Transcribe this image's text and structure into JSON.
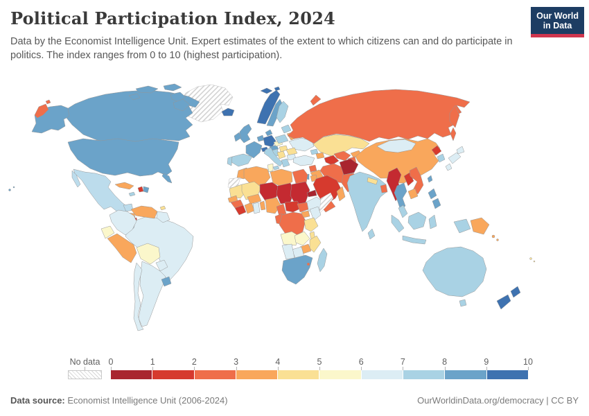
{
  "header": {
    "title": "Political Participation Index, 2024",
    "subtitle": "Data by the Economist Intelligence Unit. Expert estimates of the extent to which citizens can and do participate in politics. The index ranges from 0 to 10 (highest participation).",
    "logo": {
      "line1": "Our World",
      "line2": "in Data"
    }
  },
  "theme": {
    "logo_bg": "#1d3d63",
    "logo_accent": "#d0364e",
    "title_color": "#3a3a3a",
    "border_color": "#969696"
  },
  "legend": {
    "no_data_label": "No data",
    "ticks": [
      "0",
      "1",
      "2",
      "3",
      "4",
      "5",
      "6",
      "7",
      "8",
      "9",
      "10"
    ],
    "bin_colors": [
      "#a9252f",
      "#d63a2e",
      "#ef6e4a",
      "#f9a75c",
      "#fae094",
      "#fbf7cb",
      "#dcedf4",
      "#a9d2e4",
      "#6ba3c9",
      "#3e72b0"
    ]
  },
  "footer": {
    "source_label": "Data source:",
    "source_value": " Economist Intelligence Unit (2006-2024)",
    "credit": "OurWorldinData.org/democracy | CC BY"
  },
  "chart_data": {
    "type": "heatmap",
    "subtype": "world-choropleth",
    "title": "Political Participation Index, 2024",
    "value_range": [
      0,
      10
    ],
    "legend_position": "bottom",
    "bins": [
      {
        "range": [
          0,
          1
        ],
        "color": "#a9252f"
      },
      {
        "range": [
          1,
          2
        ],
        "color": "#d63a2e"
      },
      {
        "range": [
          2,
          3
        ],
        "color": "#ef6e4a"
      },
      {
        "range": [
          3,
          4
        ],
        "color": "#f9a75c"
      },
      {
        "range": [
          4,
          5
        ],
        "color": "#fae094"
      },
      {
        "range": [
          5,
          6
        ],
        "color": "#fbf7cb"
      },
      {
        "range": [
          6,
          7
        ],
        "color": "#dcedf4"
      },
      {
        "range": [
          7,
          8
        ],
        "color": "#a9d2e4"
      },
      {
        "range": [
          8,
          9
        ],
        "color": "#6ba3c9"
      },
      {
        "range": [
          9,
          10
        ],
        "color": "#3e72b0"
      }
    ],
    "regions": [
      {
        "id": "greenland",
        "name": "Greenland",
        "value": null,
        "color": "nodata"
      },
      {
        "id": "iceland",
        "name": "Iceland",
        "value": 9.5,
        "color": "#3e72b0"
      },
      {
        "id": "norway",
        "name": "Norway",
        "value": 9.5,
        "color": "#3e72b0"
      },
      {
        "id": "sweden",
        "name": "Sweden",
        "value": 8.5,
        "color": "#6ba3c9"
      },
      {
        "id": "finland",
        "name": "Finland",
        "value": 7.5,
        "color": "#a9d2e4"
      },
      {
        "id": "denmark",
        "name": "Denmark",
        "value": 8.5,
        "color": "#6ba3c9"
      },
      {
        "id": "united_kingdom",
        "name": "United Kingdom",
        "value": 8.5,
        "color": "#6ba3c9"
      },
      {
        "id": "ireland",
        "name": "Ireland",
        "value": 8.5,
        "color": "#6ba3c9"
      },
      {
        "id": "netherlands",
        "name": "Netherlands/Belgium",
        "value": 8.5,
        "color": "#6ba3c9"
      },
      {
        "id": "germany",
        "name": "Germany",
        "value": 9.5,
        "color": "#3e72b0"
      },
      {
        "id": "france",
        "name": "France",
        "value": 8.5,
        "color": "#6ba3c9"
      },
      {
        "id": "switzerland",
        "name": "Switzerland",
        "value": 9.5,
        "color": "#3e72b0"
      },
      {
        "id": "austria",
        "name": "Austria",
        "value": 8.5,
        "color": "#6ba3c9"
      },
      {
        "id": "czechia",
        "name": "Czechia",
        "value": 5.5,
        "color": "#fbf7cb"
      },
      {
        "id": "poland",
        "name": "Poland",
        "value": 7.5,
        "color": "#a9d2e4"
      },
      {
        "id": "baltics",
        "name": "Baltic states",
        "value": 7.5,
        "color": "#a9d2e4"
      },
      {
        "id": "belarus",
        "name": "Belarus",
        "value": 3.5,
        "color": "#f9a75c"
      },
      {
        "id": "ukraine",
        "name": "Ukraine",
        "value": 6.5,
        "color": "#dcedf4"
      },
      {
        "id": "hungary",
        "name": "Hungary",
        "value": 4.5,
        "color": "#fae094"
      },
      {
        "id": "romania",
        "name": "Romania",
        "value": 4.5,
        "color": "#fae094"
      },
      {
        "id": "serbia",
        "name": "Serbia",
        "value": 4.5,
        "color": "#fae094"
      },
      {
        "id": "croatia",
        "name": "Croatia/Bosnia",
        "value": 7.5,
        "color": "#a9d2e4"
      },
      {
        "id": "bulgaria",
        "name": "Bulgaria",
        "value": 6.5,
        "color": "#dcedf4"
      },
      {
        "id": "greece",
        "name": "Greece",
        "value": 7.5,
        "color": "#a9d2e4"
      },
      {
        "id": "italy",
        "name": "Italy",
        "value": 7.5,
        "color": "#a9d2e4"
      },
      {
        "id": "spain",
        "name": "Spain",
        "value": 7.5,
        "color": "#a9d2e4"
      },
      {
        "id": "portugal",
        "name": "Portugal",
        "value": 7.5,
        "color": "#a9d2e4"
      },
      {
        "id": "russia",
        "name": "Russia",
        "value": 2.5,
        "color": "#ef6e4a"
      },
      {
        "id": "kazakhstan",
        "name": "Kazakhstan",
        "value": 4.5,
        "color": "#fae094"
      },
      {
        "id": "uzbekistan",
        "name": "Uzbekistan",
        "value": 2.5,
        "color": "#ef6e4a"
      },
      {
        "id": "turkmenistan",
        "name": "Turkmenistan",
        "value": 1.5,
        "color": "#d63a2e"
      },
      {
        "id": "kyrgyzstan",
        "name": "Kyrgyzstan",
        "value": 3.5,
        "color": "#f9a75c"
      },
      {
        "id": "tajikistan",
        "name": "Tajikistan",
        "value": 2.5,
        "color": "#ef6e4a"
      },
      {
        "id": "georgia",
        "name": "Georgia",
        "value": 7.5,
        "color": "#a9d2e4"
      },
      {
        "id": "azerbaijan",
        "name": "Azerbaijan",
        "value": 3.5,
        "color": "#f9a75c"
      },
      {
        "id": "turkey",
        "name": "Turkey",
        "value": 6.5,
        "color": "#dcedf4"
      },
      {
        "id": "syria",
        "name": "Syria",
        "value": 2.5,
        "color": "#ef6e4a"
      },
      {
        "id": "iraq",
        "name": "Iraq",
        "value": 3.5,
        "color": "#f9a75c"
      },
      {
        "id": "israel",
        "name": "Israel",
        "value": 8.5,
        "color": "#6ba3c9"
      },
      {
        "id": "jordan",
        "name": "Jordan",
        "value": 3.5,
        "color": "#f9a75c"
      },
      {
        "id": "saudi_arabia",
        "name": "Saudi Arabia",
        "value": 1.5,
        "color": "#d63a2e"
      },
      {
        "id": "yemen",
        "name": "Yemen",
        "value": 2.5,
        "color": "#ef6e4a"
      },
      {
        "id": "oman",
        "name": "Oman",
        "value": 3.5,
        "color": "#f9a75c"
      },
      {
        "id": "iran",
        "name": "Iran",
        "value": 2.5,
        "color": "#ef6e4a"
      },
      {
        "id": "afghanistan",
        "name": "Afghanistan",
        "value": 0.5,
        "color": "#a9252f"
      },
      {
        "id": "pakistan",
        "name": "Pakistan",
        "value": 2.5,
        "color": "#ef6e4a"
      },
      {
        "id": "india",
        "name": "India",
        "value": 7.5,
        "color": "#a9d2e4"
      },
      {
        "id": "nepal",
        "name": "Nepal",
        "value": 4.5,
        "color": "#fae094"
      },
      {
        "id": "bangladesh",
        "name": "Bangladesh",
        "value": 2.5,
        "color": "#ef6e4a"
      },
      {
        "id": "sri_lanka",
        "name": "Sri Lanka",
        "value": 7.5,
        "color": "#a9d2e4"
      },
      {
        "id": "china",
        "name": "China",
        "value": 3.5,
        "color": "#f9a75c"
      },
      {
        "id": "mongolia",
        "name": "Mongolia",
        "value": 6.5,
        "color": "#dcedf4"
      },
      {
        "id": "north_korea",
        "name": "North Korea",
        "value": 1.5,
        "color": "#d63a2e"
      },
      {
        "id": "south_korea",
        "name": "South Korea",
        "value": 7.5,
        "color": "#a9d2e4"
      },
      {
        "id": "japan",
        "name": "Japan",
        "value": 6.5,
        "color": "#dcedf4"
      },
      {
        "id": "taiwan",
        "name": "Taiwan",
        "value": 8.5,
        "color": "#6ba3c9"
      },
      {
        "id": "myanmar",
        "name": "Myanmar",
        "value": 1,
        "color": "#c42a31"
      },
      {
        "id": "thailand",
        "name": "Thailand",
        "value": 8.5,
        "color": "#6ba3c9"
      },
      {
        "id": "laos",
        "name": "Laos",
        "value": 1.5,
        "color": "#d63a2e"
      },
      {
        "id": "vietnam",
        "name": "Vietnam",
        "value": 2.5,
        "color": "#ef6e4a"
      },
      {
        "id": "cambodia",
        "name": "Cambodia",
        "value": 3.5,
        "color": "#f9a75c"
      },
      {
        "id": "malaysia",
        "name": "Malaysia",
        "value": 7.5,
        "color": "#a9d2e4"
      },
      {
        "id": "indonesia",
        "name": "Indonesia",
        "value": 7.5,
        "color": "#a9d2e4"
      },
      {
        "id": "philippines",
        "name": "Philippines",
        "value": 8.5,
        "color": "#6ba3c9"
      },
      {
        "id": "papua_new_guinea",
        "name": "Papua New Guinea",
        "value": 3.5,
        "color": "#f9a75c"
      },
      {
        "id": "solomon_islands",
        "name": "Solomon Islands",
        "value": 3.5,
        "color": "#f9a75c"
      },
      {
        "id": "fiji",
        "name": "Fiji",
        "value": 4.5,
        "color": "#fae094"
      },
      {
        "id": "australia",
        "name": "Australia",
        "value": 7.5,
        "color": "#a9d2e4"
      },
      {
        "id": "new_zealand",
        "name": "New Zealand",
        "value": 9.5,
        "color": "#3e72b0"
      },
      {
        "id": "canada",
        "name": "Canada",
        "value": 8.5,
        "color": "#6ba3c9"
      },
      {
        "id": "usa",
        "name": "United States",
        "value": 8.5,
        "color": "#6ba3c9"
      },
      {
        "id": "mexico",
        "name": "Mexico",
        "value": 7,
        "color": "#bcdcec"
      },
      {
        "id": "guatemala",
        "name": "Guatemala",
        "value": 4.5,
        "color": "#fae094"
      },
      {
        "id": "honduras",
        "name": "Honduras",
        "value": 3.5,
        "color": "#f9a75c"
      },
      {
        "id": "nicaragua",
        "name": "Nicaragua",
        "value": 1.5,
        "color": "#d63a2e"
      },
      {
        "id": "costa_rica",
        "name": "Costa Rica",
        "value": 7.5,
        "color": "#a9d2e4"
      },
      {
        "id": "panama",
        "name": "Panama",
        "value": 7.5,
        "color": "#a9d2e4"
      },
      {
        "id": "cuba",
        "name": "Cuba",
        "value": 3.5,
        "color": "#f9a75c"
      },
      {
        "id": "jamaica",
        "name": "Jamaica",
        "value": 7.5,
        "color": "#a9d2e4"
      },
      {
        "id": "haiti",
        "name": "Haiti",
        "value": 1.5,
        "color": "#d63a2e"
      },
      {
        "id": "dominican_republic",
        "name": "Dominican Republic",
        "value": 8.5,
        "color": "#6ba3c9"
      },
      {
        "id": "trinidad",
        "name": "Trinidad and Tobago",
        "value": 4.5,
        "color": "#fae094"
      },
      {
        "id": "venezuela",
        "name": "Venezuela",
        "value": 3.5,
        "color": "#f9a75c"
      },
      {
        "id": "guyanas",
        "name": "Guyana/Suriname",
        "value": 6.5,
        "color": "#dcedf4"
      },
      {
        "id": "colombia",
        "name": "Colombia",
        "value": 6.5,
        "color": "#dcedf4"
      },
      {
        "id": "ecuador",
        "name": "Ecuador",
        "value": 5.5,
        "color": "#fbf7cb"
      },
      {
        "id": "peru",
        "name": "Peru",
        "value": 3.5,
        "color": "#f9a75c"
      },
      {
        "id": "bolivia",
        "name": "Bolivia",
        "value": 5.5,
        "color": "#fbf7cb"
      },
      {
        "id": "brazil",
        "name": "Brazil",
        "value": 6.5,
        "color": "#dcedf4"
      },
      {
        "id": "paraguay",
        "name": "Paraguay",
        "value": 6.5,
        "color": "#dcedf4"
      },
      {
        "id": "uruguay",
        "name": "Uruguay",
        "value": 8.5,
        "color": "#6ba3c9"
      },
      {
        "id": "argentina",
        "name": "Argentina",
        "value": 6.5,
        "color": "#dcedf4"
      },
      {
        "id": "chile",
        "name": "Chile",
        "value": 6.5,
        "color": "#dcedf4"
      },
      {
        "id": "morocco",
        "name": "Morocco",
        "value": 3.5,
        "color": "#f9a75c"
      },
      {
        "id": "western_sahara",
        "name": "Western Sahara",
        "value": null,
        "color": "nodata"
      },
      {
        "id": "algeria",
        "name": "Algeria",
        "value": 3.5,
        "color": "#f9a75c"
      },
      {
        "id": "tunisia",
        "name": "Tunisia",
        "value": 5.5,
        "color": "#fbf7cb"
      },
      {
        "id": "libya",
        "name": "Libya",
        "value": 3.5,
        "color": "#f9a75c"
      },
      {
        "id": "egypt",
        "name": "Egypt",
        "value": 2.5,
        "color": "#ef6e4a"
      },
      {
        "id": "mauritania",
        "name": "Mauritania",
        "value": 4.5,
        "color": "#fae094"
      },
      {
        "id": "mali",
        "name": "Mali",
        "value": 4.5,
        "color": "#fae094"
      },
      {
        "id": "senegal",
        "name": "Senegal",
        "value": 3.5,
        "color": "#f9a75c"
      },
      {
        "id": "guinea",
        "name": "Guinea",
        "value": 2.5,
        "color": "#ef6e4a"
      },
      {
        "id": "sierra_leone",
        "name": "Sierra Leone",
        "value": 1.5,
        "color": "#d63a2e"
      },
      {
        "id": "ivory_coast",
        "name": "Cote d'Ivoire",
        "value": 3.5,
        "color": "#f9a75c"
      },
      {
        "id": "ghana",
        "name": "Ghana",
        "value": 6.5,
        "color": "#dcedf4"
      },
      {
        "id": "burkina_faso",
        "name": "Burkina Faso",
        "value": 3.5,
        "color": "#f9a75c"
      },
      {
        "id": "togo_benin",
        "name": "Togo/Benin",
        "value": 3.5,
        "color": "#f9a75c"
      },
      {
        "id": "niger",
        "name": "Niger",
        "value": 1,
        "color": "#c42a31"
      },
      {
        "id": "nigeria",
        "name": "Nigeria",
        "value": 3.5,
        "color": "#f9a75c"
      },
      {
        "id": "chad",
        "name": "Chad",
        "value": 1,
        "color": "#c42a31"
      },
      {
        "id": "sudan",
        "name": "Sudan",
        "value": 1,
        "color": "#c42a31"
      },
      {
        "id": "eritrea",
        "name": "Eritrea",
        "value": 0.5,
        "color": "#a9252f"
      },
      {
        "id": "ethiopia",
        "name": "Ethiopia",
        "value": 6.5,
        "color": "#dcedf4"
      },
      {
        "id": "somalia",
        "name": "Somalia",
        "value": null,
        "color": "nodata"
      },
      {
        "id": "kenya",
        "name": "Kenya",
        "value": 6.5,
        "color": "#dcedf4"
      },
      {
        "id": "south_sudan",
        "name": "South Sudan",
        "value": 2.5,
        "color": "#ef6e4a"
      },
      {
        "id": "uganda",
        "name": "Uganda",
        "value": 3.5,
        "color": "#f9a75c"
      },
      {
        "id": "cameroon",
        "name": "Cameroon",
        "value": 2.5,
        "color": "#ef6e4a"
      },
      {
        "id": "central_african_republic",
        "name": "Central African Republic",
        "value": 1.5,
        "color": "#d63a2e"
      },
      {
        "id": "congo_gabon",
        "name": "Congo/Gabon",
        "value": 2.5,
        "color": "#ef6e4a"
      },
      {
        "id": "drc",
        "name": "Democratic Republic of Congo",
        "value": 2.5,
        "color": "#ef6e4a"
      },
      {
        "id": "tanzania",
        "name": "Tanzania",
        "value": 4.5,
        "color": "#fae094"
      },
      {
        "id": "angola",
        "name": "Angola",
        "value": 5.5,
        "color": "#fbf7cb"
      },
      {
        "id": "zambia",
        "name": "Zambia",
        "value": 5.5,
        "color": "#fbf7cb"
      },
      {
        "id": "malawi",
        "name": "Malawi",
        "value": 4.5,
        "color": "#fae094"
      },
      {
        "id": "mozambique",
        "name": "Mozambique",
        "value": 4.5,
        "color": "#fae094"
      },
      {
        "id": "zimbabwe",
        "name": "Zimbabwe",
        "value": 3.5,
        "color": "#f9a75c"
      },
      {
        "id": "botswana",
        "name": "Botswana",
        "value": 6.5,
        "color": "#dcedf4"
      },
      {
        "id": "namibia",
        "name": "Namibia",
        "value": 6.5,
        "color": "#dcedf4"
      },
      {
        "id": "south_africa",
        "name": "South Africa",
        "value": 8.5,
        "color": "#6ba3c9"
      },
      {
        "id": "eswatini",
        "name": "Eswatini",
        "value": 2.5,
        "color": "#ef6e4a"
      },
      {
        "id": "madagascar",
        "name": "Madagascar",
        "value": 7.5,
        "color": "#a9d2e4"
      }
    ]
  }
}
